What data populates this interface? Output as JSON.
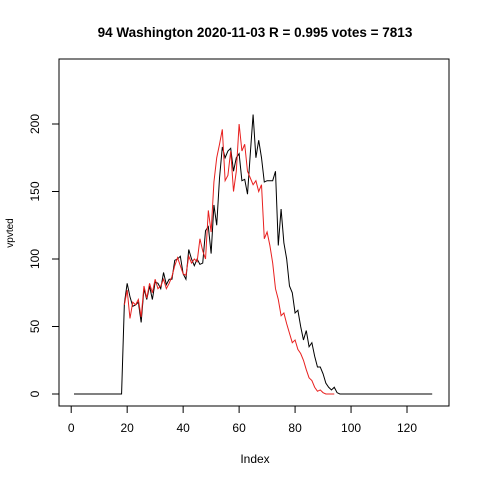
{
  "chart_data": {
    "type": "line",
    "title": "94 Washington 2020-11-03 R = 0.995 votes = 7813",
    "xlabel": "Index",
    "ylabel": "vpvted",
    "xlim": [
      1,
      130
    ],
    "ylim": [
      0,
      210
    ],
    "x_ticks": [
      0,
      20,
      40,
      60,
      80,
      100,
      120
    ],
    "y_ticks": [
      0,
      50,
      100,
      150,
      200
    ],
    "grid": false,
    "series": [
      {
        "color": "#000000",
        "x_start": 1,
        "values": [
          0,
          0,
          0,
          0,
          0,
          0,
          0,
          0,
          0,
          0,
          0,
          0,
          0,
          0,
          0,
          0,
          0,
          0,
          67,
          82,
          72,
          65,
          66,
          68,
          53,
          78,
          70,
          80,
          70,
          83,
          82,
          78,
          90,
          81,
          85,
          85,
          99,
          100,
          102,
          89,
          85,
          107,
          100,
          95,
          100,
          96,
          97,
          121,
          124,
          104,
          140,
          125,
          160,
          183,
          175,
          180,
          182,
          165,
          175,
          178,
          158,
          159,
          148,
          178,
          207,
          175,
          188,
          175,
          157,
          158,
          158,
          158,
          165,
          110,
          137,
          112,
          100,
          80,
          75,
          60,
          62,
          50,
          40,
          47,
          35,
          38,
          28,
          20,
          20,
          15,
          8,
          5,
          3,
          5,
          1,
          0,
          0,
          0,
          0,
          0,
          0,
          0,
          0,
          0,
          0,
          0,
          0,
          0,
          0,
          0,
          0,
          0,
          0,
          0,
          0,
          0,
          0,
          0,
          0,
          0,
          0,
          0,
          0,
          0,
          0,
          0,
          0,
          0,
          0
        ]
      },
      {
        "color": "#e8201f",
        "x_start": 19,
        "values": [
          66,
          77,
          56,
          68,
          66,
          70,
          57,
          80,
          71,
          82,
          75,
          85,
          78,
          80,
          85,
          78,
          82,
          87,
          95,
          101,
          95,
          89,
          88,
          102,
          97,
          100,
          98,
          115,
          106,
          100,
          136,
          120,
          157,
          175,
          185,
          196,
          158,
          162,
          180,
          150,
          165,
          200,
          180,
          185,
          165,
          160,
          155,
          158,
          150,
          155,
          115,
          120,
          110,
          97,
          78,
          70,
          58,
          60,
          52,
          45,
          38,
          40,
          33,
          30,
          25,
          18,
          12,
          10,
          5,
          2,
          3,
          1,
          0,
          0,
          0,
          0
        ]
      }
    ]
  }
}
